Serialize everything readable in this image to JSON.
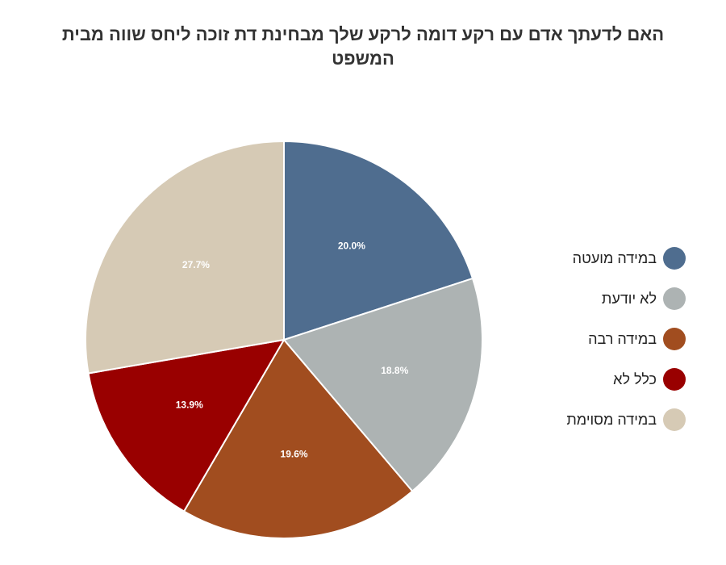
{
  "chart_data": {
    "type": "pie",
    "title": "האם לדעתך אדם עם רקע דומה לרקע שלך מבחינת דת זוכה ליחס שווה מבית המשפט",
    "categories": [
      "במידה מועטה",
      "לא יודעת",
      "במידה רבה",
      "כלל לא",
      "במידה מסוימת"
    ],
    "values": [
      20.0,
      18.8,
      19.6,
      13.9,
      27.7
    ],
    "value_labels": [
      "20.0%",
      "18.8%",
      "19.6%",
      "13.9%",
      "27.7%"
    ],
    "colors": [
      "#4f6d8f",
      "#adb3b3",
      "#a14d1f",
      "#990000",
      "#d6cab5"
    ],
    "legend_position": "right"
  }
}
